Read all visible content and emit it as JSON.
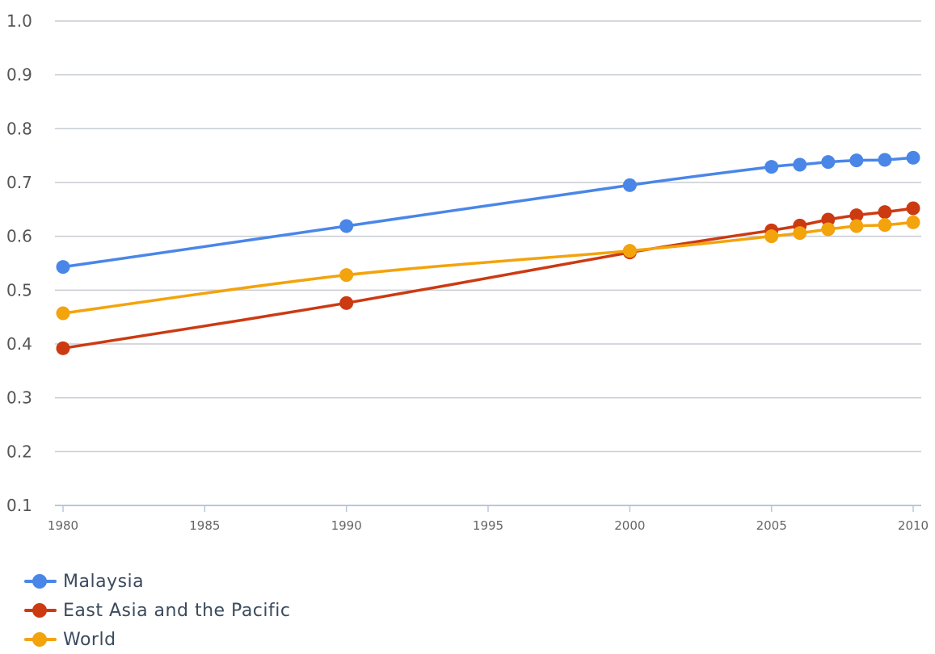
{
  "chart_data": {
    "type": "line",
    "title": "",
    "xlabel": "",
    "ylabel": "",
    "x": [
      1980,
      1990,
      2000,
      2005,
      2006,
      2007,
      2008,
      2009,
      2010
    ],
    "xlim": [
      1980,
      2010
    ],
    "ylim": [
      0.1,
      1.0
    ],
    "x_ticks": [
      "1980",
      "1985",
      "1990",
      "1995",
      "2000",
      "2005",
      "2010"
    ],
    "y_ticks": [
      "0.1",
      "0.2",
      "0.3",
      "0.4",
      "0.5",
      "0.6",
      "0.7",
      "0.8",
      "0.9",
      "1.0"
    ],
    "grid": true,
    "legend_position": "bottom-left",
    "series": [
      {
        "name": "Malaysia",
        "color": "#4a86e8",
        "values": [
          0.543,
          0.619,
          0.695,
          0.729,
          0.733,
          0.738,
          0.741,
          0.742,
          0.746
        ]
      },
      {
        "name": "East Asia and the Pacific",
        "color": "#cc3a12",
        "values": [
          0.392,
          0.476,
          0.57,
          0.611,
          0.62,
          0.631,
          0.639,
          0.645,
          0.652
        ]
      },
      {
        "name": "World",
        "color": "#f3a30c",
        "values": [
          0.457,
          0.528,
          0.573,
          0.6,
          0.606,
          0.613,
          0.619,
          0.621,
          0.626
        ]
      }
    ]
  }
}
